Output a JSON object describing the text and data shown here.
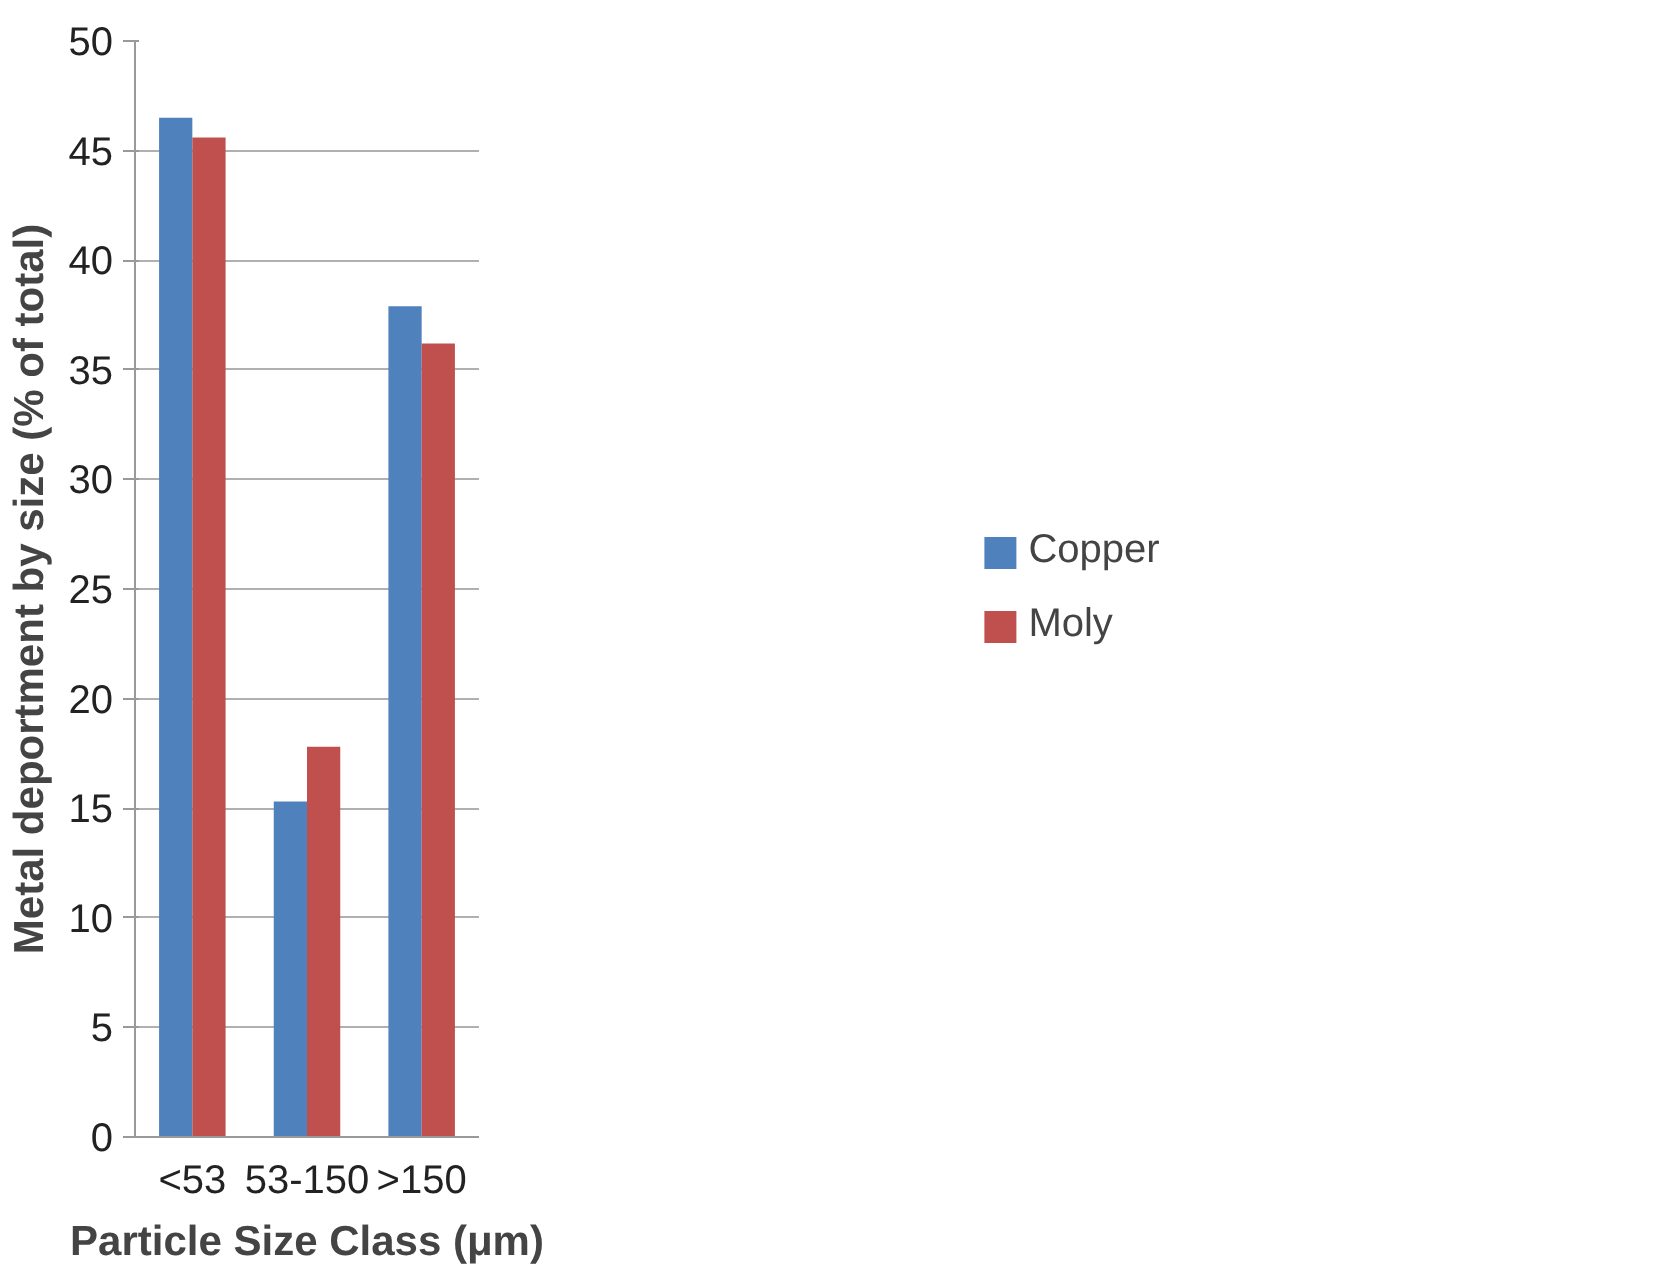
{
  "chart_data": {
    "type": "bar",
    "xlabel": "Particle Size Class (μm)",
    "ylabel": "Metal deportment by size (% of total)",
    "categories": [
      "<53",
      "53-150",
      ">150"
    ],
    "series": [
      {
        "name": "Copper",
        "color": "#4f81bd",
        "values": [
          46.5,
          15.3,
          37.9
        ]
      },
      {
        "name": "Moly",
        "color": "#c0504d",
        "values": [
          45.6,
          17.8,
          36.2
        ]
      }
    ],
    "ylim": [
      0,
      50
    ],
    "yticks": [
      0,
      5,
      10,
      15,
      20,
      25,
      30,
      35,
      40,
      45,
      50
    ],
    "grid": "y",
    "legend": "right"
  }
}
